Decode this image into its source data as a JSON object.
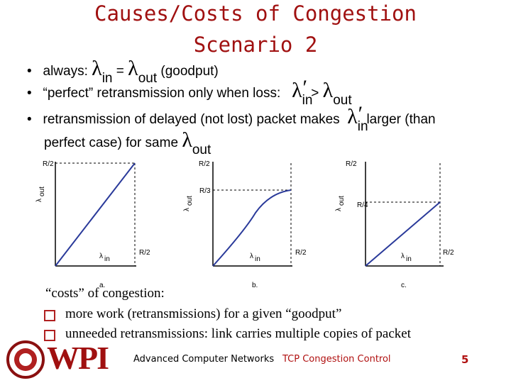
{
  "title": [
    "Causes/Costs of Congestion",
    "Scenario 2"
  ],
  "bullets": [
    [
      "always:",
      "λ",
      "in",
      "=",
      "λ",
      "out",
      "(goodput)"
    ],
    [
      "“perfect” retransmission only when loss:",
      "λ",
      "in",
      "′",
      ">",
      "λ",
      "out"
    ],
    [
      "retransmission of delayed (not lost) packet makes",
      "λ",
      "in",
      "′",
      "larger (than",
      "perfect case) for same",
      "λ",
      "out"
    ]
  ],
  "plots": [
    {
      "y_top": "R/2",
      "y_label": "λ",
      "y_sub": "out",
      "x_label": "λ",
      "x_sub": "in",
      "x_end": "R/2",
      "caption": "a."
    },
    {
      "y_top": "R/2",
      "y_mid": "R/3",
      "y_label": "λ",
      "y_sub": "out",
      "x_label": "λ",
      "x_sub": "in",
      "x_end": "R/2",
      "caption": "b."
    },
    {
      "y_top": "R/2",
      "y_mid": "R/4",
      "y_label": "λ",
      "y_sub": "out",
      "x_label": "λ",
      "x_sub": "in",
      "x_end": "R/2",
      "caption": "c."
    }
  ],
  "costs": {
    "heading": "“costs” of congestion:",
    "items": [
      "more work (retransmissions) for a given “goodput”",
      "unneeded retransmissions: link carries multiple copies of packet"
    ]
  },
  "footer": {
    "logo": "WPI",
    "course": "Advanced Computer Networks",
    "topic": "TCP Congestion Control",
    "page": "5"
  }
}
